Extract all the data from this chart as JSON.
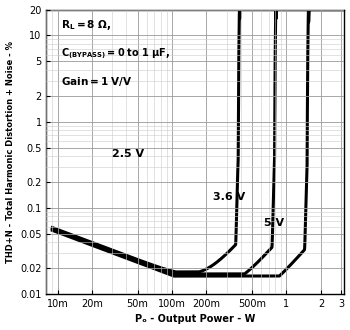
{
  "xlabel": "Pₒ - Output Power - W",
  "ylabel": "THD+N - Total Harmonic Distortion + Noise - %",
  "label_25": "2.5 V",
  "label_36": "3.6 V",
  "label_5": "5 V",
  "xlim": [
    0.008,
    3.2
  ],
  "ylim": [
    0.01,
    20
  ],
  "background_color": "#ffffff",
  "line_color": "#000000",
  "grid_major_color": "#999999",
  "grid_minor_color": "#cccccc",
  "noise_floor_25": 0.056,
  "noise_floor_36": 0.054,
  "noise_floor_5": 0.052,
  "thd_min_25": 0.019,
  "thd_min_36": 0.018,
  "thd_min_5": 0.017,
  "p_clip_25": 0.39,
  "p_clip_36": 0.81,
  "p_clip_5": 1.56,
  "x_ticks": [
    0.01,
    0.02,
    0.05,
    0.1,
    0.2,
    0.5,
    1,
    2,
    3
  ],
  "x_labels": [
    "10m",
    "20m",
    "50m",
    "100m",
    "200m",
    "500m",
    "1",
    "2",
    "3"
  ],
  "y_ticks": [
    0.01,
    0.02,
    0.05,
    0.1,
    0.2,
    0.5,
    1,
    2,
    5,
    10,
    20
  ],
  "y_labels": [
    "0.01",
    "0.02",
    "0.05",
    "0.1",
    "0.2",
    "0.5",
    "1",
    "2",
    "5",
    "10",
    "20"
  ]
}
